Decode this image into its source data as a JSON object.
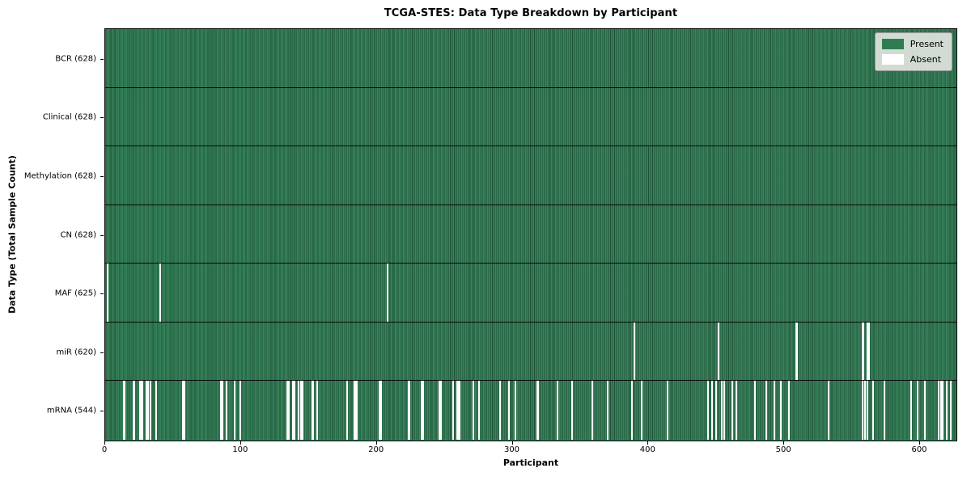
{
  "chart_data": {
    "type": "heatmap",
    "title": "TCGA-STES: Data Type Breakdown by Participant",
    "xlabel": "Participant",
    "ylabel": "Data Type (Total Sample Count)",
    "xlim": [
      0,
      628
    ],
    "x_ticks": [
      0,
      100,
      200,
      300,
      400,
      500,
      600
    ],
    "n_participants": 628,
    "grid": false,
    "legend_position": "upper right",
    "legend_entries": [
      {
        "label": "Present",
        "color": "#2e7d52"
      },
      {
        "label": "Absent",
        "color": "#ffffff"
      }
    ],
    "colors": {
      "present": "#2e7d52",
      "absent": "#fbfbfb",
      "row_divider": "#0a0a0a",
      "legend_bg": "#dfe3dd"
    },
    "rows": [
      {
        "label": "BCR (628)",
        "data_type": "BCR",
        "present_count": 628,
        "absent_participants": []
      },
      {
        "label": "Clinical (628)",
        "data_type": "Clinical",
        "present_count": 628,
        "absent_participants": []
      },
      {
        "label": "Methylation (628)",
        "data_type": "Methylation",
        "present_count": 628,
        "absent_participants": []
      },
      {
        "label": "CN (628)",
        "data_type": "CN",
        "present_count": 628,
        "absent_participants": []
      },
      {
        "label": "MAF (625)",
        "data_type": "MAF",
        "present_count": 625,
        "absent_participants": [
          1,
          40,
          208
        ]
      },
      {
        "label": "miR (620)",
        "data_type": "miR",
        "present_count": 620,
        "absent_participants": [
          390,
          452,
          509,
          510,
          558,
          559,
          562,
          563
        ]
      },
      {
        "label": "mRNA (544)",
        "data_type": "mRNA",
        "present_count": 544,
        "absent_participants": [
          13,
          14,
          20,
          21,
          25,
          26,
          27,
          30,
          31,
          33,
          37,
          57,
          58,
          85,
          86,
          89,
          95,
          99,
          134,
          135,
          138,
          139,
          142,
          144,
          145,
          152,
          153,
          156,
          178,
          183,
          184,
          185,
          202,
          203,
          223,
          224,
          233,
          234,
          246,
          247,
          256,
          259,
          260,
          261,
          271,
          275,
          291,
          297,
          302,
          318,
          319,
          333,
          344,
          359,
          370,
          388,
          395,
          414,
          444,
          447,
          450,
          454,
          456,
          462,
          465,
          479,
          487,
          493,
          498,
          504,
          533,
          558,
          560,
          562,
          566,
          574,
          594,
          599,
          604,
          614,
          616,
          617,
          620,
          623
        ]
      }
    ]
  }
}
